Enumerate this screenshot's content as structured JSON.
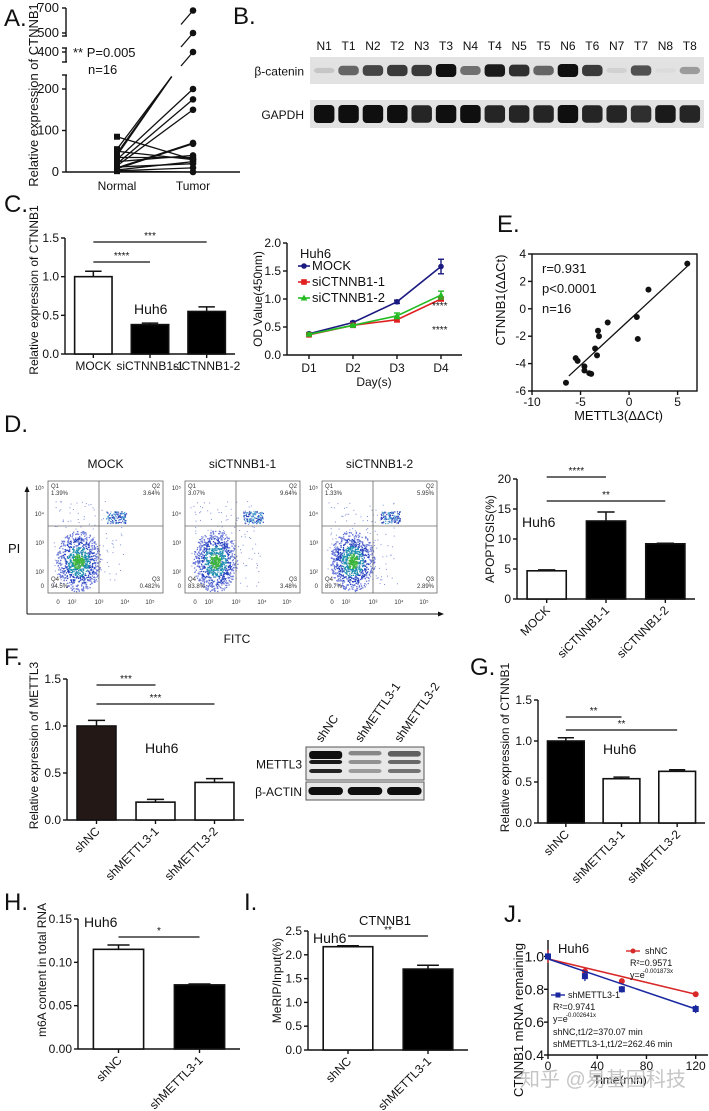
{
  "figure": {
    "panel_labels": [
      "A.",
      "B.",
      "C.",
      "D.",
      "E.",
      "F.",
      "G.",
      "H.",
      "I.",
      "J."
    ],
    "watermark": "知乎 @易基因科技"
  },
  "chart_data": [
    {
      "id": "A",
      "type": "scatter",
      "subtype": "paired-dot",
      "ylabel": "Relative expression of CTNNB1",
      "categories": [
        "Normal",
        "Tumor"
      ],
      "yticks": [
        0,
        100,
        200,
        400,
        500,
        700
      ],
      "axis_break": true,
      "annotation": [
        "** P=0.005",
        "n=16"
      ],
      "pairs": [
        [
          85,
          30
        ],
        [
          55,
          680
        ],
        [
          45,
          500
        ],
        [
          40,
          400
        ],
        [
          30,
          200
        ],
        [
          20,
          175
        ],
        [
          15,
          150
        ],
        [
          10,
          70
        ],
        [
          8,
          68
        ],
        [
          25,
          40
        ],
        [
          35,
          35
        ],
        [
          50,
          30
        ],
        [
          5,
          25
        ],
        [
          12,
          20
        ],
        [
          3,
          10
        ],
        [
          2,
          0
        ]
      ]
    },
    {
      "id": "B",
      "type": "table",
      "subtype": "western-blot",
      "lanes": [
        "N1",
        "T1",
        "N2",
        "T2",
        "N3",
        "T3",
        "N4",
        "T4",
        "N5",
        "T5",
        "N6",
        "T6",
        "N7",
        "T7",
        "N8",
        "T8"
      ],
      "rows": [
        {
          "label": "β-catenin",
          "intensity": [
            0.15,
            0.6,
            0.75,
            0.8,
            0.8,
            1.0,
            0.55,
            0.95,
            0.85,
            0.6,
            1.0,
            0.8,
            0.1,
            0.7,
            0.05,
            0.35
          ]
        },
        {
          "label": "GAPDH",
          "intensity": [
            1,
            1,
            1,
            1,
            0.9,
            1,
            1,
            0.9,
            0.9,
            0.9,
            1,
            0.9,
            0.9,
            0.85,
            0.95,
            0.9
          ]
        }
      ]
    },
    {
      "id": "C1",
      "type": "bar",
      "ylabel": "Relative expression of CTNNB1",
      "categories": [
        "MOCK",
        "siCTNNB1-1",
        "siCTNNB1-2"
      ],
      "values": [
        1.0,
        0.38,
        0.55
      ],
      "errors": [
        0.07,
        0.02,
        0.06
      ],
      "fills": [
        "#ffffff",
        "#000000",
        "#000000"
      ],
      "ylim": [
        0,
        1.5
      ],
      "yticks": [
        "0.0",
        "0.5",
        "1.0",
        "1.5"
      ],
      "annotation": "Huh6",
      "significance": [
        {
          "from": 0,
          "to": 1,
          "label": "****"
        },
        {
          "from": 0,
          "to": 2,
          "label": "***"
        }
      ]
    },
    {
      "id": "C2",
      "type": "line",
      "ylabel": "OD Value(450nm)",
      "xlabel": "Day(s)",
      "x": [
        "D1",
        "D2",
        "D3",
        "D4"
      ],
      "ylim": [
        0,
        2.0
      ],
      "yticks": [
        "0.0",
        "0.5",
        "1.0",
        "1.5",
        "2.0"
      ],
      "legend_title": "Huh6",
      "legend": "top-left",
      "series": [
        {
          "name": "MOCK",
          "color": "#1a1a80",
          "marker": "circle",
          "values": [
            0.38,
            0.58,
            0.95,
            1.58
          ],
          "errors": [
            0.02,
            0.02,
            0.03,
            0.13
          ]
        },
        {
          "name": "siCTNNB1-1",
          "color": "#e02020",
          "marker": "square",
          "values": [
            0.36,
            0.53,
            0.63,
            1.0
          ],
          "errors": [
            0.02,
            0.02,
            0.04,
            0.03
          ]
        },
        {
          "name": "siCTNNB1-2",
          "color": "#22bb22",
          "marker": "triangle",
          "values": [
            0.37,
            0.53,
            0.7,
            1.07
          ],
          "errors": [
            0.02,
            0.02,
            0.05,
            0.07
          ]
        }
      ],
      "significance": [
        "****",
        "****"
      ]
    },
    {
      "id": "E",
      "type": "scatter",
      "xlabel": "METTL3(ΔΔCt)",
      "ylabel": "CTNNB1(ΔΔCt)",
      "xlim": [
        -10,
        7
      ],
      "ylim": [
        -6,
        4
      ],
      "xticks": [
        -10,
        -5,
        0,
        5
      ],
      "yticks": [
        -6,
        -4,
        -2,
        0,
        2,
        4
      ],
      "annotation": [
        "r=0.931",
        "p<0.0001",
        "n=16"
      ],
      "points": [
        [
          6.0,
          3.3
        ],
        [
          2.0,
          1.4
        ],
        [
          0.8,
          -0.6
        ],
        [
          0.9,
          -2.2
        ],
        [
          -2.2,
          -1.0
        ],
        [
          -3.2,
          -1.6
        ],
        [
          -3.1,
          -2.0
        ],
        [
          -3.5,
          -2.9
        ],
        [
          -3.3,
          -3.4
        ],
        [
          -5.5,
          -3.6
        ],
        [
          -5.3,
          -3.8
        ],
        [
          -4.6,
          -4.2
        ],
        [
          -4.6,
          -4.5
        ],
        [
          -4.1,
          -4.7
        ],
        [
          -3.9,
          -4.75
        ],
        [
          -6.5,
          -5.4
        ]
      ],
      "fit": {
        "x": [
          -6.2,
          6.0
        ],
        "y": [
          -4.9,
          3.1
        ]
      }
    },
    {
      "id": "D1",
      "type": "scatter",
      "subtype": "flow-cytometry",
      "xlabel": "FITC",
      "ylabel": "PI",
      "xticks": [
        "0",
        "10²",
        "10³",
        "10⁴",
        "10⁵"
      ],
      "yticks": [
        "0",
        "10²",
        "10³",
        "10⁴",
        "10⁵"
      ],
      "plots": [
        {
          "title": "MOCK",
          "Q1": "1.39%",
          "Q2": "3.64%",
          "Q3": "0.482%",
          "Q4": "94.5%"
        },
        {
          "title": "siCTNNB1-1",
          "Q1": "3.07%",
          "Q2": "9.64%",
          "Q3": "3.48%",
          "Q4": "83.8%"
        },
        {
          "title": "siCTNNB1-2",
          "Q1": "1.33%",
          "Q2": "5.95%",
          "Q3": "2.89%",
          "Q4": "89.7%"
        }
      ],
      "quadrant_names": [
        "Q1",
        "Q2",
        "Q3",
        "Q4"
      ]
    },
    {
      "id": "D2",
      "type": "bar",
      "ylabel": "APOPTOSIS(%)",
      "categories": [
        "MOCK",
        "siCTNNB1-1",
        "siCTNNB1-2"
      ],
      "values": [
        4.7,
        13.0,
        9.2
      ],
      "errors": [
        0.15,
        1.5,
        0.1
      ],
      "fills": [
        "#ffffff",
        "#000000",
        "#000000"
      ],
      "ylim": [
        0,
        20
      ],
      "yticks": [
        "0",
        "5",
        "10",
        "15",
        "20"
      ],
      "annotation": "Huh6",
      "significance": [
        {
          "from": 0,
          "to": 1,
          "label": "****"
        },
        {
          "from": 0,
          "to": 2,
          "label": "**"
        }
      ]
    },
    {
      "id": "F1",
      "type": "bar",
      "ylabel": "Relative expression of METTL3",
      "categories": [
        "shNC",
        "shMETTL3-1",
        "shMETTL3-2"
      ],
      "values": [
        1.0,
        0.19,
        0.4
      ],
      "errors": [
        0.06,
        0.03,
        0.04
      ],
      "fills": [
        "#231815",
        "#ffffff",
        "#ffffff"
      ],
      "ylim": [
        0,
        1.5
      ],
      "yticks": [
        "0.0",
        "0.5",
        "1.0",
        "1.5"
      ],
      "annotation": "Huh6",
      "significance": [
        {
          "from": 0,
          "to": 1,
          "label": "***"
        },
        {
          "from": 0,
          "to": 2,
          "label": "***"
        }
      ]
    },
    {
      "id": "F2",
      "type": "table",
      "subtype": "western-blot",
      "lanes": [
        "shNC",
        "shMETTL3-1",
        "shMETTL3-2"
      ],
      "rows": [
        {
          "label": "METTL3",
          "intensity": [
            1.0,
            0.4,
            0.6
          ]
        },
        {
          "label": "β-ACTIN",
          "intensity": [
            1.0,
            1.0,
            1.0
          ]
        }
      ]
    },
    {
      "id": "G",
      "type": "bar",
      "ylabel": "Relative expression of CTNNB1",
      "categories": [
        "shNC",
        "shMETTL3-1",
        "shMETTL3-2"
      ],
      "values": [
        1.0,
        0.54,
        0.63
      ],
      "errors": [
        0.04,
        0.02,
        0.02
      ],
      "fills": [
        "#000000",
        "#ffffff",
        "#ffffff"
      ],
      "ylim": [
        0,
        1.5
      ],
      "yticks": [
        "0.0",
        "0.5",
        "1.0",
        "1.5"
      ],
      "annotation": "Huh6",
      "significance": [
        {
          "from": 0,
          "to": 1,
          "label": "**"
        },
        {
          "from": 0,
          "to": 2,
          "label": "**"
        }
      ]
    },
    {
      "id": "H",
      "type": "bar",
      "ylabel": "m6A content in total RNA",
      "categories": [
        "shNC",
        "shMETTL3-1"
      ],
      "values": [
        0.115,
        0.074
      ],
      "errors": [
        0.005,
        0.001
      ],
      "fills": [
        "#ffffff",
        "#000000"
      ],
      "ylim": [
        0,
        0.15
      ],
      "yticks": [
        "0.00",
        "0.05",
        "0.10",
        "0.15"
      ],
      "annotation": "Huh6",
      "significance": [
        {
          "from": 0,
          "to": 1,
          "label": "*"
        }
      ]
    },
    {
      "id": "I",
      "type": "bar",
      "title": "CTNNB1",
      "ylabel": "MeRIP/Input(%)",
      "categories": [
        "shNC",
        "shMETTL3-1"
      ],
      "values": [
        2.17,
        1.7
      ],
      "errors": [
        0.02,
        0.08
      ],
      "fills": [
        "#ffffff",
        "#000000"
      ],
      "ylim": [
        0,
        2.5
      ],
      "yticks": [
        "0.0",
        "0.5",
        "1.0",
        "1.5",
        "2.0",
        "2.5"
      ],
      "annotation": "Huh6",
      "significance": [
        {
          "from": 0,
          "to": 1,
          "label": "**"
        }
      ]
    },
    {
      "id": "J",
      "type": "line",
      "ylabel": "CTNNB1 mRNA remaining",
      "xlabel": "Time(min)",
      "xlim": [
        0,
        130
      ],
      "ylim": [
        0.4,
        1.1
      ],
      "xticks": [
        0,
        40,
        80,
        120
      ],
      "yticks": [
        "0.4",
        "0.6",
        "0.8",
        "1.0"
      ],
      "annotation": "Huh6",
      "series": [
        {
          "name": "shNC",
          "color": "#d82828",
          "marker": "circle",
          "x": [
            0,
            30,
            60,
            120
          ],
          "values": [
            1.0,
            0.91,
            0.85,
            0.77
          ],
          "errors": [
            0.04,
            0.02,
            0.01,
            0.015
          ],
          "r2": "R²=0.9571",
          "eq_base": "y=e",
          "eq_exp": "-0.001873x"
        },
        {
          "name": "shMETTL3-1",
          "color": "#1a28a0",
          "marker": "square",
          "x": [
            0,
            30,
            60,
            120
          ],
          "values": [
            1.0,
            0.88,
            0.8,
            0.68
          ],
          "errors": [
            0.02,
            0.03,
            0.02,
            0.025
          ],
          "r2": "R²=0.9741",
          "eq_base": "y=e",
          "eq_exp": "-0.002641x"
        }
      ],
      "half_lives": [
        "shNC,t1/2=370.07 min",
        "shMETTL3-1,t1/2=262.46 min"
      ]
    }
  ]
}
